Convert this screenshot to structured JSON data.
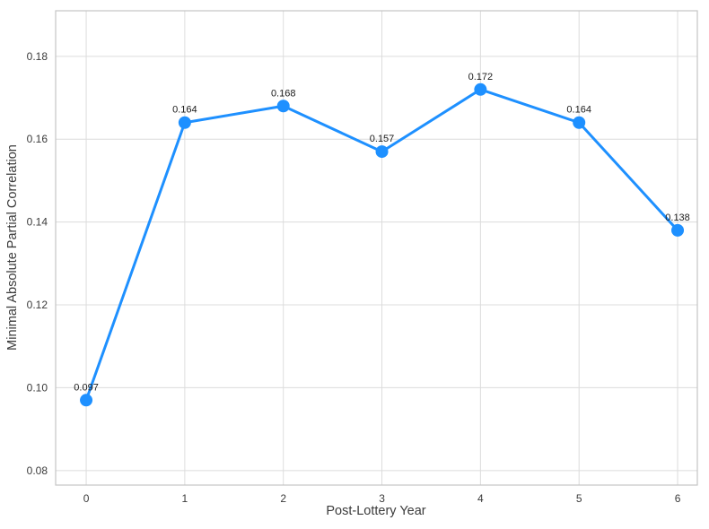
{
  "figure": {
    "background": "#ffffff"
  },
  "chart_data": {
    "type": "line",
    "title": "",
    "xlabel": "Post-Lottery Year",
    "ylabel": "Minimal Absolute Partial Correlation",
    "x": [
      0,
      1,
      2,
      3,
      4,
      5,
      6
    ],
    "values": [
      0.097,
      0.164,
      0.168,
      0.157,
      0.172,
      0.164,
      0.138
    ],
    "point_labels": [
      "0.097",
      "0.164",
      "0.168",
      "0.157",
      "0.172",
      "0.164",
      "0.138"
    ],
    "xticks": [
      0,
      1,
      2,
      3,
      4,
      5,
      6
    ],
    "xtick_labels": [
      "0",
      "1",
      "2",
      "3",
      "4",
      "5",
      "6"
    ],
    "yticks": [
      0.08,
      0.1,
      0.12,
      0.14,
      0.16,
      0.18
    ],
    "ytick_labels": [
      "0.08",
      "0.10",
      "0.12",
      "0.14",
      "0.16",
      "0.18"
    ],
    "xlim": [
      -0.31,
      6.2
    ],
    "ylim": [
      0.0765,
      0.191
    ],
    "grid": true,
    "legend": "none",
    "colors": {
      "line": "#1E90FF",
      "marker": "#1E90FF",
      "grid": "#dcdcdc",
      "border": "#c4c4c4",
      "tick_text": "#3b3b3b",
      "axis_label_text": "#3b3b3b",
      "annotation_text": "#1a1a1a"
    }
  }
}
